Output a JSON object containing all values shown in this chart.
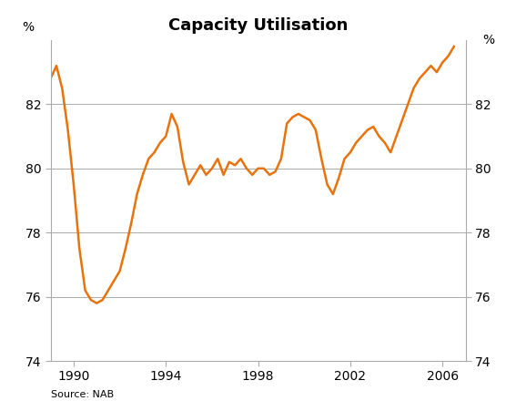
{
  "title": "Capacity Utilisation",
  "ylabel_left": "%",
  "ylabel_right": "%",
  "source": "Source: NAB",
  "line_color": "#E8720C",
  "line_width": 1.8,
  "ylim": [
    74,
    84
  ],
  "yticks": [
    74,
    76,
    78,
    80,
    82
  ],
  "background_color": "#ffffff",
  "x_data": [
    1989.0,
    1989.25,
    1989.5,
    1989.75,
    1990.0,
    1990.25,
    1990.5,
    1990.75,
    1991.0,
    1991.25,
    1991.5,
    1991.75,
    1992.0,
    1992.25,
    1992.5,
    1992.75,
    1993.0,
    1993.25,
    1993.5,
    1993.75,
    1994.0,
    1994.25,
    1994.5,
    1994.75,
    1995.0,
    1995.25,
    1995.5,
    1995.75,
    1996.0,
    1996.25,
    1996.5,
    1996.75,
    1997.0,
    1997.25,
    1997.5,
    1997.75,
    1998.0,
    1998.25,
    1998.5,
    1998.75,
    1999.0,
    1999.25,
    1999.5,
    1999.75,
    2000.0,
    2000.25,
    2000.5,
    2000.75,
    2001.0,
    2001.25,
    2001.5,
    2001.75,
    2002.0,
    2002.25,
    2002.5,
    2002.75,
    2003.0,
    2003.25,
    2003.5,
    2003.75,
    2004.0,
    2004.25,
    2004.5,
    2004.75,
    2005.0,
    2005.25,
    2005.5,
    2005.75,
    2006.0,
    2006.25,
    2006.5
  ],
  "y_data": [
    82.8,
    83.2,
    82.5,
    81.2,
    79.5,
    77.5,
    76.2,
    75.9,
    75.8,
    75.9,
    76.2,
    76.5,
    76.8,
    77.5,
    78.3,
    79.2,
    79.8,
    80.3,
    80.5,
    80.8,
    81.0,
    81.7,
    81.3,
    80.2,
    79.5,
    79.8,
    80.1,
    79.8,
    80.0,
    80.3,
    79.8,
    80.2,
    80.1,
    80.3,
    80.0,
    79.8,
    80.0,
    80.0,
    79.8,
    79.9,
    80.3,
    81.4,
    81.6,
    81.7,
    81.6,
    81.5,
    81.2,
    80.3,
    79.5,
    79.2,
    79.7,
    80.3,
    80.5,
    80.8,
    81.0,
    81.2,
    81.3,
    81.0,
    80.8,
    80.5,
    81.0,
    81.5,
    82.0,
    82.5,
    82.8,
    83.0,
    83.2,
    83.0,
    83.3,
    83.5,
    83.8
  ],
  "xticks": [
    1990,
    1994,
    1998,
    2002,
    2006
  ],
  "xlim": [
    1989.0,
    2007.0
  ]
}
